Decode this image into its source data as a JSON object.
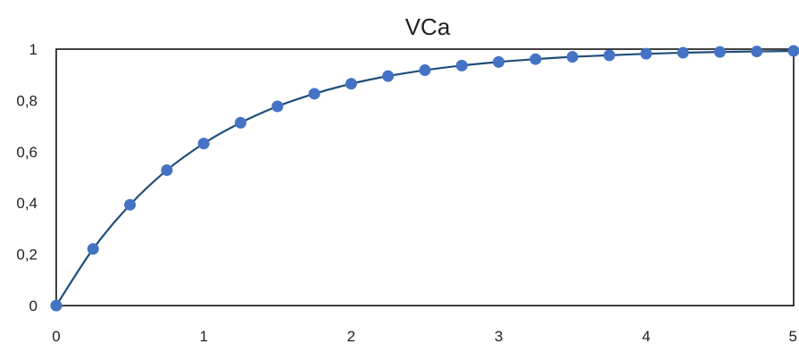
{
  "chart_data": {
    "type": "scatter",
    "title": "VCa",
    "xlabel": "",
    "ylabel": "",
    "xlim": [
      0,
      5
    ],
    "ylim": [
      0,
      1
    ],
    "xticks": [
      0,
      1,
      2,
      3,
      4,
      5
    ],
    "yticks": [
      0,
      0.2,
      0.4,
      0.6,
      0.8,
      1
    ],
    "xtick_labels": [
      "0",
      "1",
      "2",
      "3",
      "4",
      "5"
    ],
    "ytick_labels": [
      "0",
      "0,2",
      "0,4",
      "0,6",
      "0,8",
      "1"
    ],
    "grid": false,
    "legend": "none",
    "series": [
      {
        "line_color": "#1f4e79",
        "marker_color": "#4472c4",
        "x": [
          0,
          0.25,
          0.5,
          0.75,
          1,
          1.25,
          1.5,
          1.75,
          2,
          2.25,
          2.5,
          2.75,
          3,
          3.25,
          3.5,
          3.75,
          4,
          4.25,
          4.5,
          4.75,
          5
        ],
        "y": [
          0,
          0.221,
          0.393,
          0.528,
          0.632,
          0.713,
          0.777,
          0.826,
          0.865,
          0.895,
          0.918,
          0.936,
          0.95,
          0.961,
          0.97,
          0.976,
          0.982,
          0.986,
          0.989,
          0.991,
          0.993
        ]
      }
    ]
  }
}
